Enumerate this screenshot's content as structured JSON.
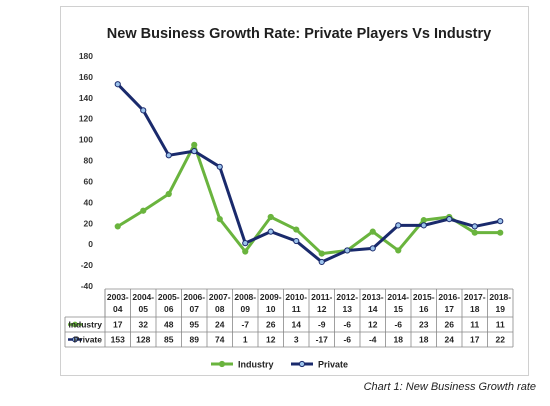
{
  "chart_data": {
    "type": "line",
    "title": "New Business Growth Rate: Private Players Vs Industry",
    "categories": [
      [
        "2003-",
        "04"
      ],
      [
        "2004-",
        "05"
      ],
      [
        "2005-",
        "06"
      ],
      [
        "2006-",
        "07"
      ],
      [
        "2007-",
        "08"
      ],
      [
        "2008-",
        "09"
      ],
      [
        "2009-",
        "10"
      ],
      [
        "2010-",
        "11"
      ],
      [
        "2011-",
        "12"
      ],
      [
        "2012-",
        "13"
      ],
      [
        "2013-",
        "14"
      ],
      [
        "2014-",
        "15"
      ],
      [
        "2015-",
        "16"
      ],
      [
        "2016-",
        "17"
      ],
      [
        "2017-",
        "18"
      ],
      [
        "2018-",
        "19"
      ]
    ],
    "series": [
      {
        "name": "Industry",
        "color": "#6ab43e",
        "values": [
          17,
          32,
          48,
          95,
          24,
          -7,
          26,
          14,
          -9,
          -6,
          12,
          -6,
          23,
          26,
          11,
          11
        ]
      },
      {
        "name": "Private",
        "color": "#1a2a6c",
        "values": [
          153,
          128,
          85,
          89,
          74,
          1,
          12,
          3,
          -17,
          -6,
          -4,
          18,
          18,
          24,
          17,
          22
        ]
      }
    ],
    "ylim": [
      -40,
      180
    ],
    "yticks": [
      -40,
      -20,
      0,
      20,
      40,
      60,
      80,
      100,
      120,
      140,
      160,
      180
    ],
    "grid": false,
    "legend": "bottom",
    "data_table": true
  },
  "caption": "Chart 1: New Business Growth rate"
}
